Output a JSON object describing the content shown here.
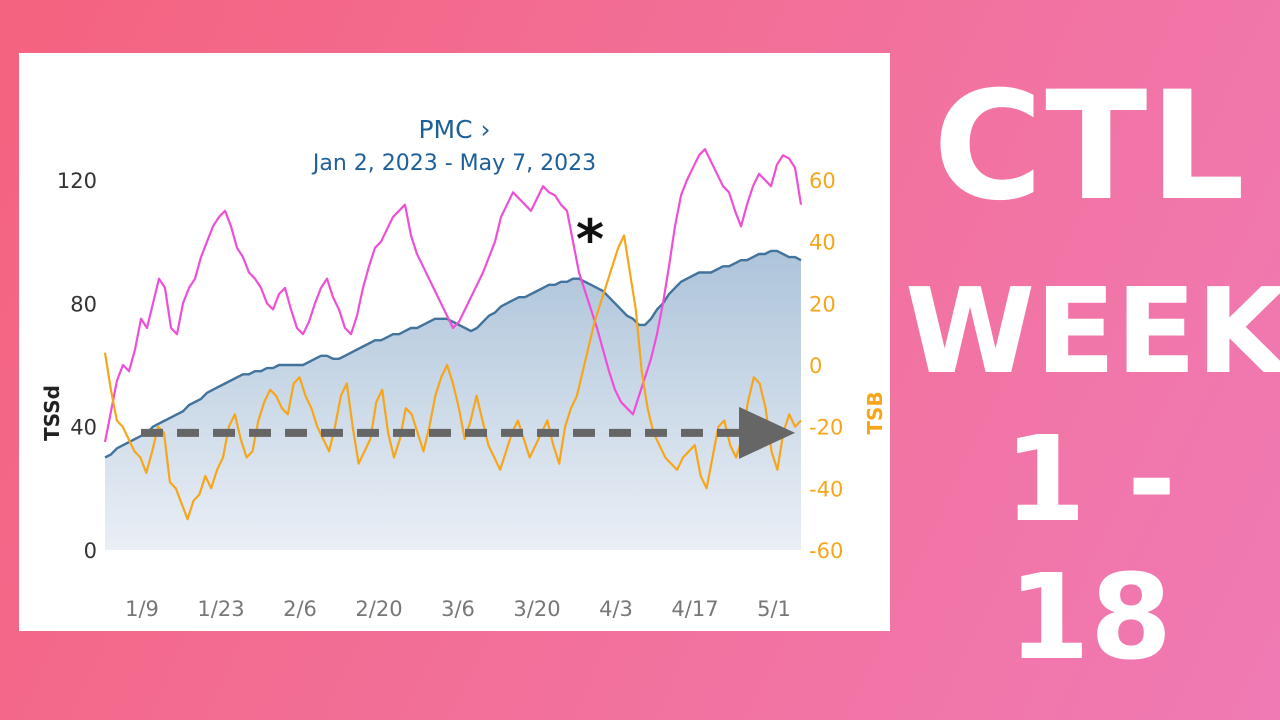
{
  "headline": {
    "line1": "CTL",
    "line2": "WEEK",
    "line3": "1 - 18"
  },
  "chart_data": {
    "type": "line",
    "title": "PMC ›",
    "subtitle": "Jan 2, 2023 - May 7, 2023",
    "ylabel": "TSSd",
    "y2label": "TSB",
    "ylim": [
      0,
      120
    ],
    "y2lim": [
      -60,
      60
    ],
    "yticks": [
      "0",
      "40",
      "80",
      "120"
    ],
    "y2ticks": [
      "-60",
      "-40",
      "-20",
      "0",
      "20",
      "40",
      "60"
    ],
    "xticks": [
      "1/9",
      "1/23",
      "2/6",
      "2/20",
      "3/6",
      "3/20",
      "4/3",
      "4/17",
      "5/1"
    ],
    "colors": {
      "fitness": "#41739c",
      "fatigue": "#ee4fd6",
      "form": "#f6a61b",
      "arrow": "#666666"
    },
    "annotation": "*",
    "series": [
      {
        "key": "fitness",
        "axis": "left",
        "values": [
          30,
          31,
          33,
          34,
          35,
          36,
          37,
          38,
          40,
          41,
          42,
          43,
          44,
          45,
          47,
          48,
          49,
          51,
          52,
          53,
          54,
          55,
          56,
          57,
          57,
          58,
          58,
          59,
          59,
          60,
          60,
          60,
          60,
          60,
          61,
          62,
          63,
          63,
          62,
          62,
          63,
          64,
          65,
          66,
          67,
          68,
          68,
          69,
          70,
          70,
          71,
          72,
          72,
          73,
          74,
          75,
          75,
          75,
          74,
          73,
          72,
          71,
          72,
          74,
          76,
          77,
          79,
          80,
          81,
          82,
          82,
          83,
          84,
          85,
          86,
          86,
          87,
          87,
          88,
          88,
          87,
          86,
          85,
          84,
          82,
          80,
          78,
          76,
          75,
          73,
          73,
          75,
          78,
          80,
          83,
          85,
          87,
          88,
          89,
          90,
          90,
          90,
          91,
          92,
          92,
          93,
          94,
          94,
          95,
          96,
          96,
          97,
          97,
          96,
          95,
          95,
          94
        ],
        "fill": true
      },
      {
        "key": "fatigue",
        "axis": "left",
        "values": [
          35,
          45,
          55,
          60,
          58,
          65,
          75,
          72,
          80,
          88,
          85,
          72,
          70,
          80,
          85,
          88,
          95,
          100,
          105,
          108,
          110,
          105,
          98,
          95,
          90,
          88,
          85,
          80,
          78,
          83,
          85,
          78,
          72,
          70,
          74,
          80,
          85,
          88,
          82,
          78,
          72,
          70,
          76,
          85,
          92,
          98,
          100,
          104,
          108,
          110,
          112,
          102,
          96,
          92,
          88,
          84,
          80,
          76,
          72,
          74,
          78,
          82,
          86,
          90,
          95,
          100,
          108,
          112,
          116,
          114,
          112,
          110,
          114,
          118,
          116,
          115,
          112,
          110,
          100,
          90,
          84,
          78,
          72,
          65,
          58,
          52,
          48,
          46,
          44,
          50,
          56,
          62,
          70,
          80,
          92,
          105,
          115,
          120,
          124,
          128,
          130,
          126,
          122,
          118,
          116,
          110,
          105,
          112,
          118,
          122,
          120,
          118,
          125,
          128,
          127,
          124,
          112
        ],
        "stroke_only": true
      },
      {
        "key": "form",
        "axis": "right",
        "values": [
          4,
          -8,
          -18,
          -20,
          -24,
          -28,
          -30,
          -35,
          -28,
          -20,
          -22,
          -38,
          -40,
          -45,
          -50,
          -44,
          -42,
          -36,
          -40,
          -34,
          -30,
          -20,
          -16,
          -24,
          -30,
          -28,
          -18,
          -12,
          -8,
          -10,
          -14,
          -16,
          -6,
          -4,
          -10,
          -14,
          -20,
          -24,
          -28,
          -20,
          -10,
          -6,
          -20,
          -32,
          -28,
          -24,
          -12,
          -8,
          -22,
          -30,
          -24,
          -14,
          -16,
          -22,
          -28,
          -20,
          -10,
          -4,
          0,
          -6,
          -14,
          -24,
          -18,
          -10,
          -18,
          -26,
          -30,
          -34,
          -28,
          -22,
          -18,
          -24,
          -30,
          -26,
          -22,
          -18,
          -26,
          -32,
          -20,
          -14,
          -10,
          -2,
          6,
          14,
          20,
          26,
          32,
          38,
          42,
          30,
          18,
          -2,
          -14,
          -22,
          -26,
          -30,
          -32,
          -34,
          -30,
          -28,
          -26,
          -36,
          -40,
          -30,
          -20,
          -18,
          -26,
          -30,
          -24,
          -12,
          -4,
          -6,
          -14,
          -28,
          -34,
          -22,
          -16,
          -20,
          -18
        ],
        "stroke_only": true
      }
    ]
  }
}
